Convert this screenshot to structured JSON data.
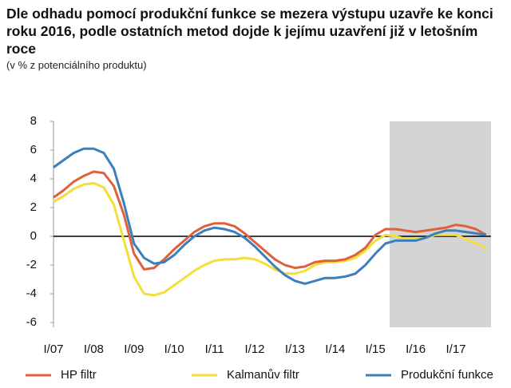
{
  "chart_data": {
    "type": "line",
    "title": "Dle odhadu pomocí produkční funkce se mezera výstupu uzavře ke konci roku 2016, podle ostatních metod dojde k jejímu uzavření již v letošním roce",
    "subtitle": "(v % z potenciálního produktu)",
    "categories": [
      "I/07",
      null,
      null,
      null,
      "I/08",
      null,
      null,
      null,
      "I/09",
      null,
      null,
      null,
      "I/10",
      null,
      null,
      null,
      "I/11",
      null,
      null,
      null,
      "I/12",
      null,
      null,
      null,
      "I/13",
      null,
      null,
      null,
      "I/14",
      null,
      null,
      null,
      "I/15",
      null,
      null,
      null,
      "I/16",
      null,
      null,
      null,
      "I/17",
      null,
      null,
      null
    ],
    "series": [
      {
        "name": "HP filtr",
        "color": "#e0603c",
        "values": [
          2.7,
          3.2,
          3.8,
          4.2,
          4.5,
          4.4,
          3.5,
          1.5,
          -1.2,
          -2.3,
          -2.2,
          -1.6,
          -0.9,
          -0.3,
          0.3,
          0.7,
          0.9,
          0.9,
          0.7,
          0.2,
          -0.4,
          -1.0,
          -1.6,
          -2.0,
          -2.2,
          -2.1,
          -1.8,
          -1.7,
          -1.7,
          -1.6,
          -1.3,
          -0.8,
          0.1,
          0.5,
          0.5,
          0.4,
          0.3,
          0.4,
          0.5,
          0.6,
          0.8,
          0.7,
          0.5,
          0.1
        ]
      },
      {
        "name": "Kalmanův filtr",
        "color": "#f2df3a",
        "values": [
          2.4,
          2.8,
          3.3,
          3.6,
          3.7,
          3.4,
          2.2,
          -0.3,
          -2.8,
          -4.0,
          -4.1,
          -3.9,
          -3.4,
          -2.9,
          -2.4,
          -2.0,
          -1.7,
          -1.6,
          -1.6,
          -1.5,
          -1.6,
          -1.9,
          -2.3,
          -2.6,
          -2.6,
          -2.4,
          -2.0,
          -1.8,
          -1.8,
          -1.7,
          -1.5,
          -1.0,
          -0.3,
          0.1,
          0.0,
          -0.2,
          -0.2,
          -0.1,
          0.1,
          0.1,
          0.1,
          -0.2,
          -0.5,
          -0.8
        ]
      },
      {
        "name": "Produkční funkce",
        "color": "#3b7fbd",
        "values": [
          4.8,
          5.3,
          5.8,
          6.1,
          6.1,
          5.8,
          4.7,
          2.3,
          -0.5,
          -1.5,
          -1.9,
          -1.8,
          -1.3,
          -0.6,
          0.0,
          0.4,
          0.6,
          0.5,
          0.3,
          -0.1,
          -0.7,
          -1.4,
          -2.1,
          -2.7,
          -3.1,
          -3.3,
          -3.1,
          -2.9,
          -2.9,
          -2.8,
          -2.6,
          -2.0,
          -1.2,
          -0.5,
          -0.3,
          -0.3,
          -0.3,
          -0.1,
          0.2,
          0.4,
          0.4,
          0.3,
          0.2,
          0.1
        ]
      }
    ],
    "ylim": [
      -6,
      8
    ],
    "yticks": [
      -6,
      -4,
      -2,
      0,
      2,
      4,
      6,
      8
    ],
    "grid": false,
    "legend": "bottom"
  }
}
